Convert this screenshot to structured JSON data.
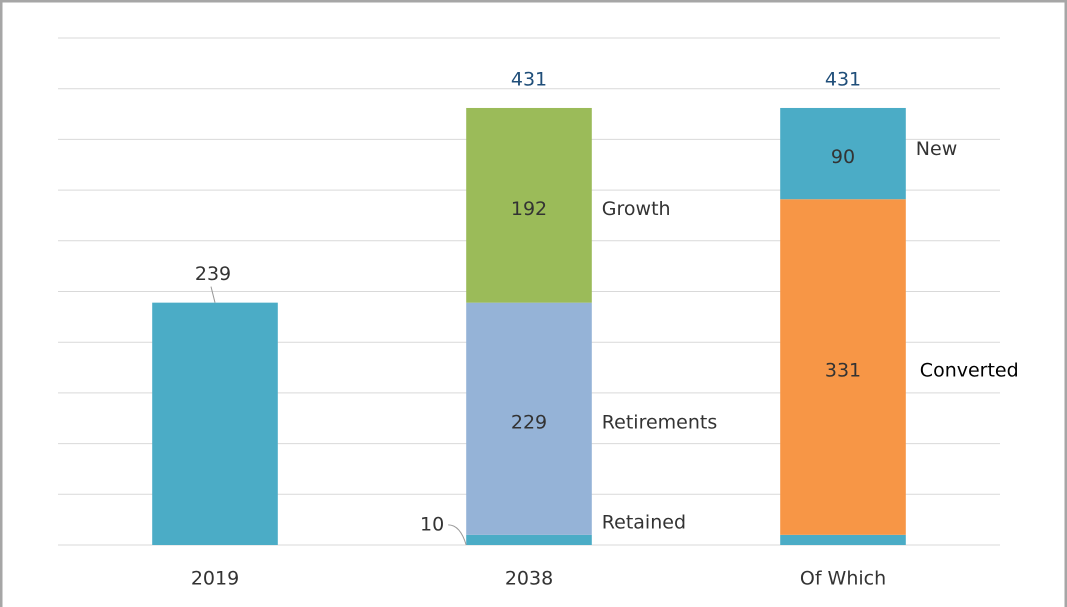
{
  "chart_data": {
    "type": "stacked_bar",
    "categories": [
      "2019",
      "2038",
      "Of Which"
    ],
    "series": [
      {
        "name": "Retained",
        "color": "#4bacc6",
        "values": [
          239,
          10,
          10
        ],
        "value_labels": [
          239,
          10,
          null
        ]
      },
      {
        "name": "Retirements",
        "color": "#95b3d7",
        "values": [
          null,
          229,
          null
        ]
      },
      {
        "name": "Growth",
        "color": "#9bbb59",
        "values": [
          null,
          192,
          null
        ]
      },
      {
        "name": "Converted",
        "color": "#f79646",
        "values": [
          null,
          null,
          331
        ]
      },
      {
        "name": "New",
        "color": "#4bacc6",
        "values": [
          null,
          null,
          90
        ]
      }
    ],
    "totals": [
      null,
      431,
      431
    ],
    "ylim": [
      0,
      500
    ],
    "yticks": [
      0,
      50,
      100,
      150,
      200,
      250,
      300,
      350,
      400,
      450,
      500
    ],
    "grid": true
  }
}
